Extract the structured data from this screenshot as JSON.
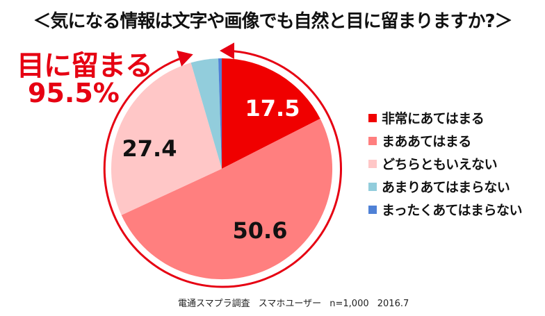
{
  "title": "＜気になる情報は文字や画像でも自然と目に留まりますか?＞",
  "callout": {
    "line1": "目に留まる",
    "line2": "95.5%",
    "color": "#e60012"
  },
  "chart_data": {
    "type": "pie",
    "title": "＜気になる情報は文字や画像でも自然と目に留まりますか?＞",
    "categories": [
      "非常にあてはまる",
      "まああてはまる",
      "どちらともいえない",
      "あまりあてはまらない",
      "まったくあてはまらない"
    ],
    "values": [
      17.5,
      50.6,
      27.4,
      4.0,
      0.5
    ],
    "colors": [
      "#f00000",
      "#ff7f7f",
      "#ffc7c7",
      "#92cddc",
      "#4f81d6"
    ],
    "data_labels": [
      "17.5",
      "50.6",
      "27.4",
      "",
      ""
    ],
    "start_angle": "12 o'clock, clockwise",
    "legend_position": "right",
    "annotation": "目に留まる 95.5%"
  },
  "labels": {
    "slice0": "17.5",
    "slice1": "50.6",
    "slice2": "27.4"
  },
  "legend": [
    {
      "label": "非常にあてはまる",
      "color": "#f00000"
    },
    {
      "label": "まああてはまる",
      "color": "#ff7f7f"
    },
    {
      "label": "どちらともいえない",
      "color": "#ffc7c7"
    },
    {
      "label": "あまりあてはまらない",
      "color": "#92cddc"
    },
    {
      "label": "まったくあてはまらない",
      "color": "#4f81d6"
    }
  ],
  "source": {
    "survey": "電通スマプラ調査",
    "target": "スマホユーザー",
    "sample": "n=1,000",
    "date": "2016.7"
  }
}
